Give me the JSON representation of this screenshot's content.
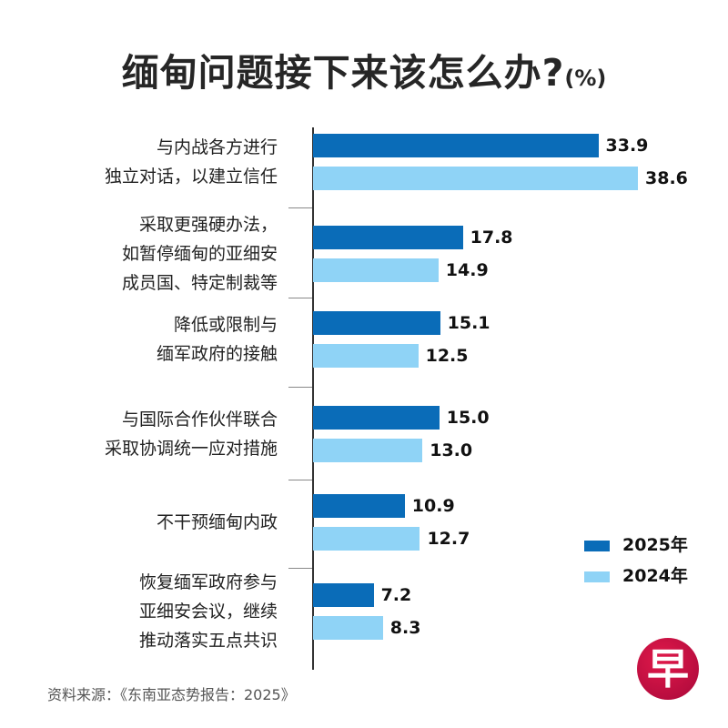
{
  "chart_data": {
    "type": "bar",
    "orientation": "horizontal",
    "title": "缅甸问题接下来该怎么办?",
    "title_unit": "(%)",
    "categories": [
      "与内战各方进行\n独立对话，以建立信任",
      "采取更强硬办法，\n如暂停缅甸的亚细安\n成员国、特定制裁等",
      "降低或限制与\n缅军政府的接触",
      "与国际合作伙伴联合\n采取协调统一应对措施",
      "不干预缅甸内政",
      "恢复缅军政府参与\n亚细安会议，继续\n推动落实五点共识"
    ],
    "series": [
      {
        "name": "2025年",
        "color": "#0a6cb8",
        "values": [
          33.9,
          17.8,
          15.1,
          15.0,
          10.9,
          7.2
        ]
      },
      {
        "name": "2024年",
        "color": "#8fd3f6",
        "values": [
          38.6,
          14.9,
          12.5,
          13.0,
          12.7,
          8.3
        ]
      }
    ],
    "value_labels": [
      [
        "33.9",
        "17.8",
        "15.1",
        "15.0",
        "10.9",
        "7.2"
      ],
      [
        "38.6",
        "14.9",
        "12.5",
        "13.0",
        "12.7",
        "8.3"
      ]
    ],
    "xlim": [
      0,
      40
    ],
    "grid": false,
    "legend_placement": "bottom-right"
  },
  "source": "资料来源：《东南亚态势报告：2025》",
  "logo_text": "早"
}
